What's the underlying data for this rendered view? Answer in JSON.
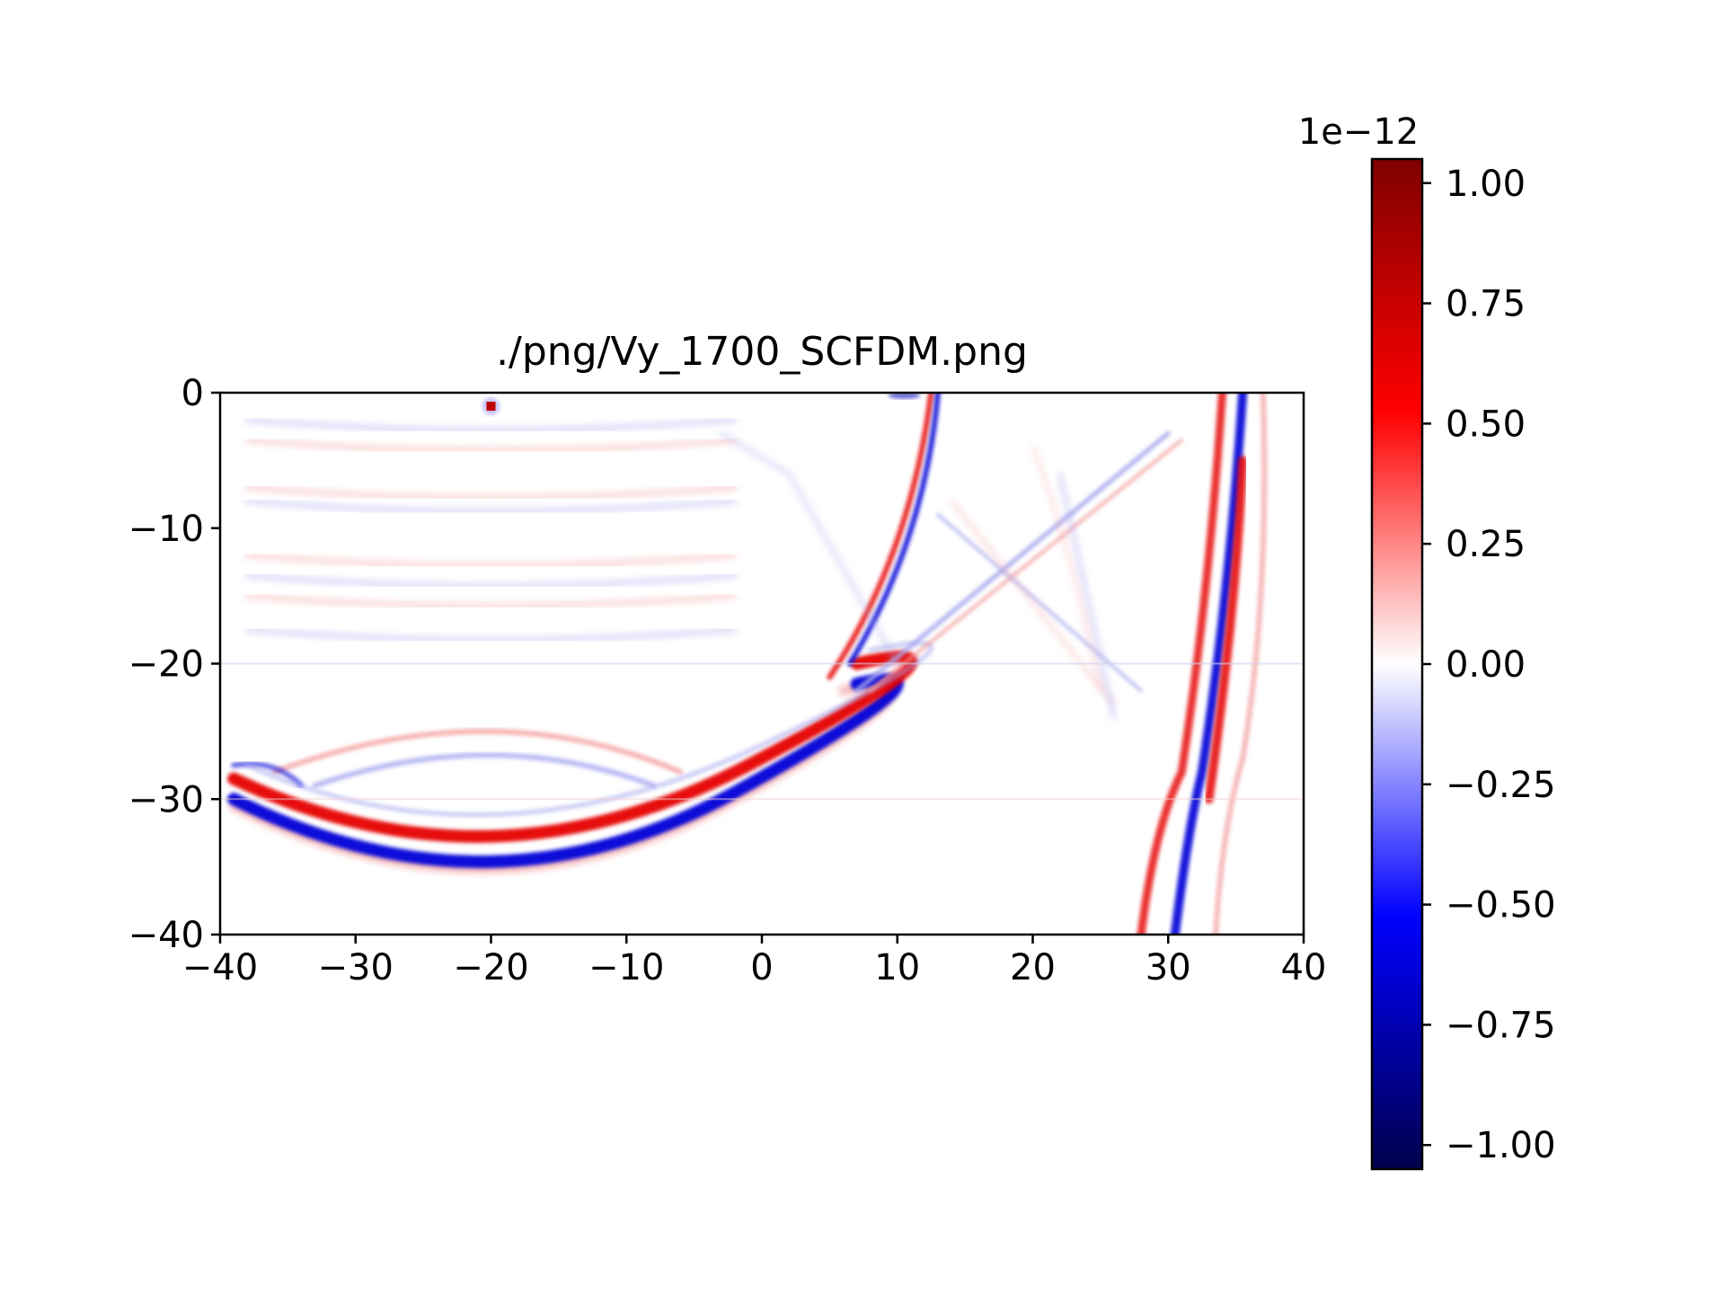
{
  "chart_data": {
    "type": "heatmap",
    "title": "./png/Vy_1700_SCFDM.png",
    "xlabel": "",
    "ylabel": "",
    "xlim": [
      -40,
      40
    ],
    "ylim": [
      -40,
      0
    ],
    "x_ticks": [
      "−40",
      "−30",
      "−20",
      "−10",
      "0",
      "10",
      "20",
      "30",
      "40"
    ],
    "x_tick_values": [
      -40,
      -30,
      -20,
      -10,
      0,
      10,
      20,
      30,
      40
    ],
    "y_ticks": [
      "0",
      "−10",
      "−20",
      "−30",
      "−40"
    ],
    "y_tick_values": [
      0,
      -10,
      -20,
      -30,
      -40
    ],
    "colormap": "seismic",
    "colorbar": {
      "range": [
        -1.05,
        1.05
      ],
      "offset_label": "1e−12",
      "ticks": [
        "1.00",
        "0.75",
        "0.50",
        "0.25",
        "0.00",
        "−0.25",
        "−0.50",
        "−0.75",
        "−1.00"
      ],
      "tick_values": [
        1.0,
        0.75,
        0.5,
        0.25,
        0.0,
        -0.25,
        -0.5,
        -0.75,
        -1.0
      ],
      "colors": [
        "#00004c",
        "#0000ff",
        "#ffffff",
        "#ff0000",
        "#7f0000"
      ]
    },
    "features": [
      {
        "kind": "wavefront",
        "description": "strong lower arc",
        "x_range": [
          -39,
          5
        ],
        "bottom_depth": -35,
        "center_x": -20,
        "amplitude": 1.0
      },
      {
        "kind": "wavefront",
        "description": "rising branch toward surface",
        "from": [
          0,
          -27
        ],
        "to": [
          12,
          0
        ]
      },
      {
        "kind": "wavefront",
        "description": "twin steep wavefronts",
        "x_range": [
          28,
          38
        ],
        "y_range": [
          -40,
          0
        ]
      },
      {
        "kind": "source",
        "x": -20,
        "y": -1
      }
    ]
  }
}
